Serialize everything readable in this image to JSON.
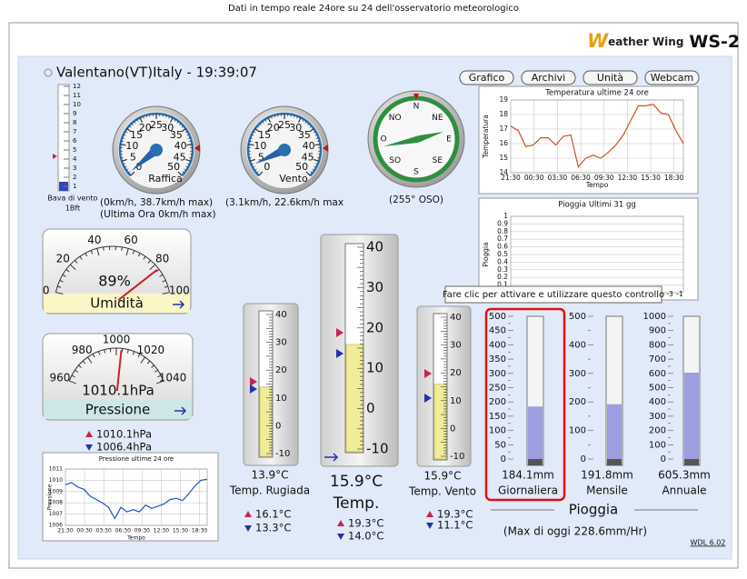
{
  "header": {
    "caption": "Dati in tempo reale 24ore su 24 dell'osservatorio meteorologico",
    "logo_initial": "W",
    "logo_text": "eather Wing",
    "logo_model": "WS-2"
  },
  "station": "Valentano(VT)Italy - 19:39:07",
  "buttons": [
    "Grafico",
    "Archivi",
    "Unità",
    "Webcam"
  ],
  "beaufort": {
    "ticks": [
      12,
      11,
      10,
      9,
      8,
      7,
      6,
      5,
      4,
      3,
      2,
      1
    ],
    "label": "Bava di vento",
    "value": "1Bft"
  },
  "gust": {
    "ticks": [
      0,
      5,
      10,
      15,
      20,
      25,
      30,
      35,
      40,
      45,
      50
    ],
    "label": "Raffica",
    "info": "(0km/h, 38.7km/h max)",
    "info2": "(Ultima Ora 0km/h max)"
  },
  "wind": {
    "ticks": [
      0,
      5,
      10,
      15,
      20,
      25,
      30,
      35,
      40,
      45,
      50
    ],
    "label": "Vento",
    "info": "(3.1km/h, 22.6km/h max"
  },
  "compass": {
    "points": [
      "N",
      "NE",
      "E",
      "SE",
      "S",
      "SO",
      "O",
      "NO"
    ],
    "info": "(255° OSO)"
  },
  "humidity": {
    "ticks": [
      0,
      20,
      40,
      60,
      80,
      100
    ],
    "value": "89%",
    "label": "Umidità"
  },
  "pressure": {
    "ticks": [
      960,
      980,
      1000,
      1020,
      1040
    ],
    "value": "1010.1hPa",
    "label": "Pressione",
    "high": "1010.1hPa",
    "low": "1006.4hPa"
  },
  "temp_chart": {
    "title": "Temperatura ultime 24 ore",
    "ylabel": "Temperatura",
    "xlabel": "Tempo",
    "ylim": [
      14,
      19
    ],
    "yticks": [
      14,
      15,
      16,
      17,
      18,
      19
    ],
    "xlabels": [
      "21:30",
      "00:30",
      "03:30",
      "06:30",
      "09:30",
      "12:30",
      "15:30",
      "18:30"
    ],
    "values": [
      17.2,
      16.9,
      15.8,
      15.9,
      16.4,
      16.4,
      15.9,
      16.5,
      16.6,
      14.4,
      15.0,
      15.2,
      15.0,
      15.4,
      15.9,
      16.6,
      17.6,
      18.6,
      18.6,
      18.7,
      18.1,
      18.0,
      16.9,
      16.0
    ]
  },
  "rain_chart": {
    "title": "Pioggia Ultimi 31 gg",
    "ylabel": "Pioggia",
    "ylim": [
      0,
      1
    ],
    "yticks": [
      0,
      0.1,
      0.2,
      0.3,
      0.4,
      0.5,
      0.6,
      0.7,
      0.8,
      0.9,
      1
    ],
    "partial_labels": [
      "-3",
      "-1"
    ]
  },
  "tooltip": "Fare clic per attivare e utilizzare questo controllo",
  "pressure_chart": {
    "title": "Pressione ultime 24 ore",
    "ylabel": "Pressione",
    "xlabel": "Tempo",
    "ylim": [
      1006,
      1011
    ],
    "yticks": [
      1006,
      1007,
      1008,
      1009,
      1010,
      1011
    ],
    "xlabels": [
      "21:30",
      "00:30",
      "03:30",
      "06:30",
      "09:30",
      "12:30",
      "15:30",
      "18:30"
    ],
    "values": [
      1009.6,
      1009.8,
      1009.4,
      1009.2,
      1008.6,
      1008.3,
      1008.0,
      1007.6,
      1006.6,
      1007.6,
      1007.2,
      1007.4,
      1007.2,
      1007.8,
      1007.5,
      1007.7,
      1007.9,
      1008.3,
      1008.4,
      1008.2,
      1008.8,
      1009.5,
      1010.0,
      1010.1
    ]
  },
  "thermometers": [
    {
      "ticks": [
        40,
        30,
        20,
        10,
        0,
        -10
      ],
      "value": "13.9°C",
      "label": "Temp. Rugiada",
      "high": "16.1°C",
      "low": "13.3°C"
    },
    {
      "ticks": [
        40,
        30,
        20,
        10,
        0,
        -10
      ],
      "value": "15.9°C",
      "label": "Temp.",
      "high": "19.3°C",
      "low": "14.0°C"
    },
    {
      "ticks": [
        40,
        30,
        20,
        10,
        0,
        -10
      ],
      "value": "15.9°C",
      "label": "Temp. Vento",
      "high": "19.3°C",
      "low": "11.1°C"
    }
  ],
  "rain": {
    "tubes": [
      {
        "ticks": [
          500,
          450,
          400,
          350,
          300,
          250,
          200,
          150,
          100,
          50,
          0
        ],
        "value": "184.1mm",
        "label": "Giornaliera"
      },
      {
        "ticks": [
          500,
          400,
          300,
          200,
          100,
          0
        ],
        "value": "191.8mm",
        "label": "Mensile"
      },
      {
        "ticks": [
          1000,
          900,
          800,
          700,
          600,
          500,
          400,
          300,
          200,
          100,
          0
        ],
        "value": "605.3mm",
        "label": "Annuale"
      }
    ],
    "label": "Pioggia",
    "max": "(Max di oggi 228.6mm/Hr)"
  },
  "footer": "WDL 6.02"
}
